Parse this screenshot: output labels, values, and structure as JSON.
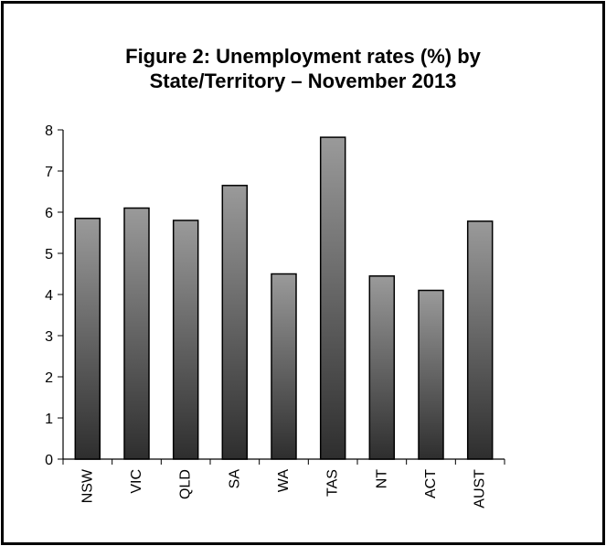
{
  "chart_data": {
    "type": "bar",
    "title_lines": [
      "Figure 2: Unemployment rates (%) by",
      "State/Territory – November 2013"
    ],
    "xlabel": "",
    "ylabel": "",
    "categories": [
      "NSW",
      "VIC",
      "QLD",
      "SA",
      "WA",
      "TAS",
      "NT",
      "ACT",
      "AUST"
    ],
    "values": [
      5.85,
      6.1,
      5.8,
      6.65,
      4.5,
      7.82,
      4.45,
      4.1,
      5.78
    ],
    "ylim": [
      0,
      8
    ],
    "yticks": [
      "0",
      "1",
      "2",
      "3",
      "4",
      "5",
      "6",
      "7",
      "8"
    ],
    "grid": false,
    "legend": "none",
    "colors": {
      "bar_top": "#9a9a9a",
      "bar_bottom": "#2e2e2e",
      "bar_outline": "#000000",
      "axis": "#000000"
    }
  }
}
